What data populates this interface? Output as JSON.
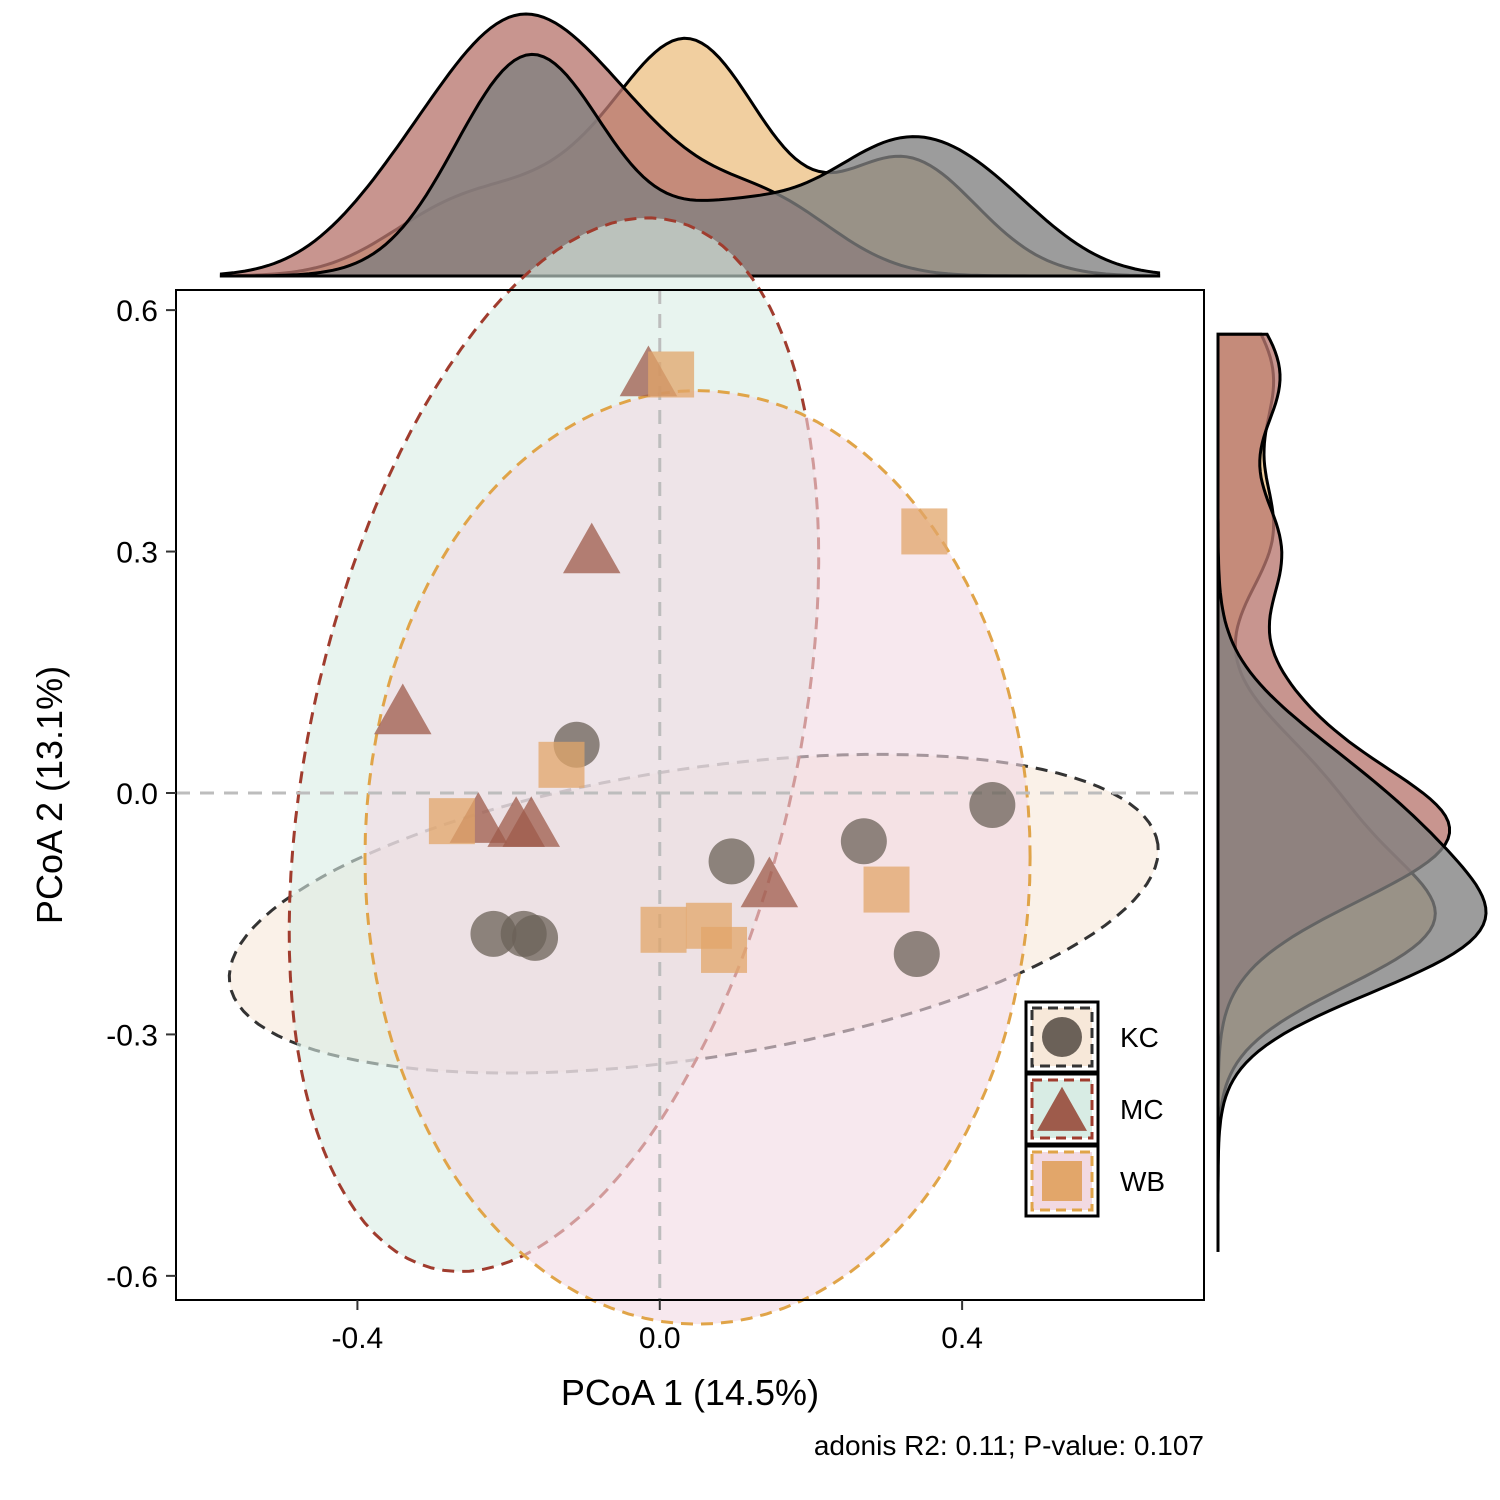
{
  "chart_data": {
    "type": "scatter",
    "title": "",
    "xlabel": "PCoA 1 (14.5%)",
    "ylabel": "PCoA 2 (13.1%)",
    "xlim": [
      -0.64,
      0.72
    ],
    "ylim": [
      -0.63,
      0.625
    ],
    "x_ticks": [
      -0.4,
      0.0,
      0.4
    ],
    "x_tick_labels": [
      "-0.4",
      "0.0",
      "0.4"
    ],
    "y_ticks": [
      0.6,
      0.3,
      0.0,
      -0.3,
      -0.6
    ],
    "y_tick_labels": [
      "0.6",
      "0.3",
      "0.0",
      "-0.3",
      "-0.6"
    ],
    "reference_lines": {
      "x": 0,
      "y": 0,
      "style": "dashed",
      "color": "#bdbdbd"
    },
    "grid": false,
    "legend_position": "bottom-right (inside plot)",
    "marginal_density": {
      "top": "PCoA 1 density per group",
      "right": "PCoA 2 density per group"
    },
    "caption": "adonis R2: 0.11; P-value: 0.107",
    "series": [
      {
        "name": "KC",
        "shape": "circle",
        "color": "#6b6158",
        "ellipse_fill": "#f7e8d9",
        "ellipse_stroke": "#333333",
        "density_fill": "#808080",
        "points": [
          {
            "x": -0.11,
            "y": 0.06
          },
          {
            "x": 0.44,
            "y": -0.015
          },
          {
            "x": 0.27,
            "y": -0.06
          },
          {
            "x": 0.095,
            "y": -0.085
          },
          {
            "x": 0.34,
            "y": -0.2
          },
          {
            "x": -0.22,
            "y": -0.175
          },
          {
            "x": -0.18,
            "y": -0.175
          },
          {
            "x": -0.165,
            "y": -0.18
          }
        ]
      },
      {
        "name": "MC",
        "shape": "triangle",
        "color": "#9e5b4b",
        "ellipse_fill": "#d8ece4",
        "ellipse_stroke": "#a03c2e",
        "density_fill": "#b87770",
        "points": [
          {
            "x": -0.015,
            "y": 0.52
          },
          {
            "x": -0.09,
            "y": 0.3
          },
          {
            "x": -0.34,
            "y": 0.1
          },
          {
            "x": -0.24,
            "y": -0.035
          },
          {
            "x": -0.19,
            "y": -0.04
          },
          {
            "x": -0.17,
            "y": -0.04
          },
          {
            "x": 0.145,
            "y": -0.115
          }
        ]
      },
      {
        "name": "WB",
        "shape": "square",
        "color": "#e2a66a",
        "ellipse_fill": "#f2d9e2",
        "ellipse_stroke": "#e0a448",
        "density_fill": "#edc285",
        "points": [
          {
            "x": 0.015,
            "y": 0.52
          },
          {
            "x": 0.35,
            "y": 0.325
          },
          {
            "x": -0.13,
            "y": 0.035
          },
          {
            "x": -0.275,
            "y": -0.035
          },
          {
            "x": 0.3,
            "y": -0.12
          },
          {
            "x": 0.005,
            "y": -0.17
          },
          {
            "x": 0.065,
            "y": -0.165
          },
          {
            "x": 0.085,
            "y": -0.195
          }
        ]
      }
    ],
    "ellipses": [
      {
        "group": "KC",
        "cx": 0.045,
        "cy": -0.15,
        "rx": 0.62,
        "ry": 0.18,
        "angle_deg": 8
      },
      {
        "group": "MC",
        "cx": -0.14,
        "cy": 0.06,
        "rx": 0.32,
        "ry": 0.67,
        "angle_deg": -14
      },
      {
        "group": "WB",
        "cx": 0.05,
        "cy": -0.08,
        "rx": 0.44,
        "ry": 0.58,
        "angle_deg": 0
      }
    ]
  }
}
